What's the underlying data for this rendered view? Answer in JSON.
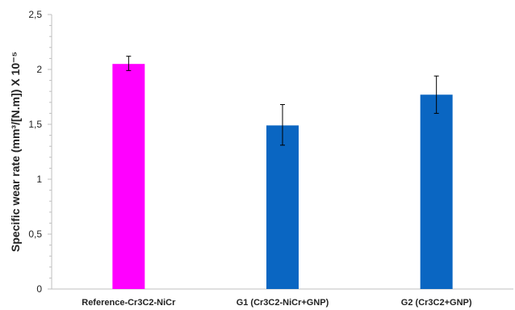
{
  "chart_data": {
    "type": "bar",
    "categories": [
      "Reference-Cr3C2-NiCr",
      "G1 (Cr3C2-NiCr+GNP)",
      "G2 (Cr3C2+GNP)"
    ],
    "values": [
      2.05,
      1.49,
      1.77
    ],
    "error_low": [
      1.99,
      1.31,
      1.6
    ],
    "error_high": [
      2.12,
      1.68,
      1.94
    ],
    "bar_colors": [
      "#ff00ff",
      "#0a66c2",
      "#0a66c2"
    ],
    "ylabel": "Specific wear rate (mm³/[N.m]) X 10⁻⁵",
    "ylim": [
      0,
      2.5
    ],
    "yticks": [
      "0",
      "0,5",
      "1",
      "1,5",
      "2",
      "2,5"
    ],
    "grid": false
  }
}
